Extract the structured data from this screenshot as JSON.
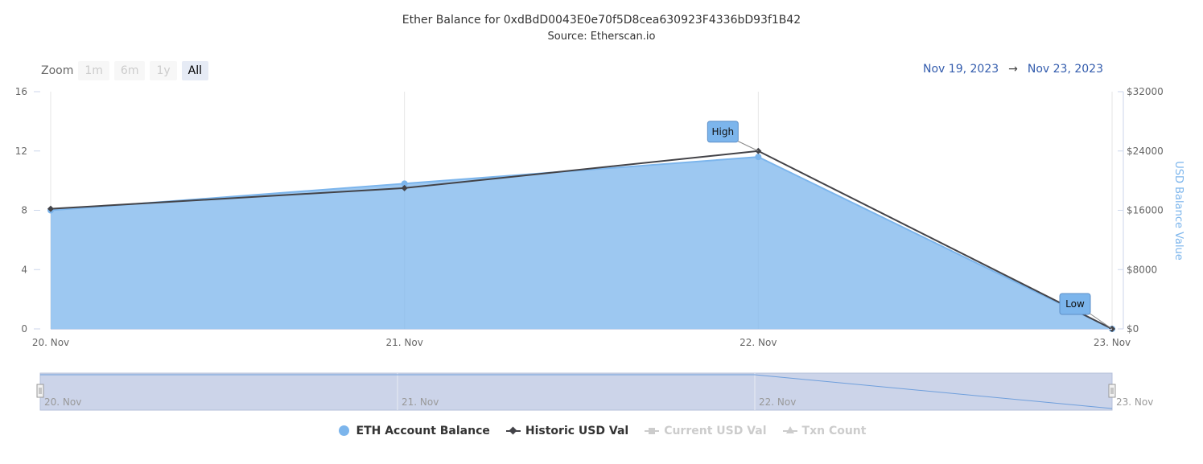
{
  "title": "Ether Balance for 0xdBdD0043E0e70f5D8cea630923F4336bD93f1B42",
  "subtitle": "Source: Etherscan.io",
  "zoom": {
    "label": "Zoom",
    "buttons": [
      "1m",
      "6m",
      "1y",
      "All"
    ],
    "active": "All"
  },
  "range": {
    "from": "Nov 19, 2023",
    "arrow": "→",
    "to": "Nov 23, 2023"
  },
  "legend": [
    {
      "label": "ETH Account Balance",
      "color": "#7cb5ec",
      "visible": true
    },
    {
      "label": "Historic USD Val",
      "color": "#434348",
      "visible": true
    },
    {
      "label": "Current USD Val",
      "color": "#cccccc",
      "visible": false
    },
    {
      "label": "Txn Count",
      "color": "#cccccc",
      "visible": false
    }
  ],
  "chart_data": {
    "type": "area",
    "title": "Ether Balance for 0xdBdD0043E0e70f5D8cea630923F4336bD93f1B42",
    "subtitle": "Source: Etherscan.io",
    "categories": [
      "20. Nov",
      "21. Nov",
      "22. Nov",
      "23. Nov"
    ],
    "y_left": {
      "ticks": [
        "0",
        "4",
        "8",
        "12",
        "16"
      ],
      "range": [
        0,
        16
      ]
    },
    "y_right": {
      "label": "USD Balance Value",
      "ticks": [
        "$0",
        "$8000",
        "$16000",
        "$24000",
        "$32000"
      ],
      "range": [
        0,
        32000
      ]
    },
    "series": [
      {
        "name": "ETH Account Balance",
        "type": "area",
        "axis": "left",
        "color": "#7cb5ec",
        "values": [
          8.0,
          9.8,
          11.6,
          0
        ]
      },
      {
        "name": "Historic USD Val",
        "type": "line",
        "axis": "right",
        "color": "#434348",
        "values": [
          16200,
          19000,
          24000,
          0
        ]
      }
    ],
    "annotations": [
      {
        "text": "High",
        "category": "22. Nov",
        "series": "Historic USD Val"
      },
      {
        "text": "Low",
        "category": "23. Nov",
        "series": "Historic USD Val"
      }
    ],
    "navigator_labels": [
      "20. Nov",
      "21. Nov",
      "22. Nov",
      "23. Nov"
    ],
    "grid": true,
    "legend_position": "bottom"
  }
}
